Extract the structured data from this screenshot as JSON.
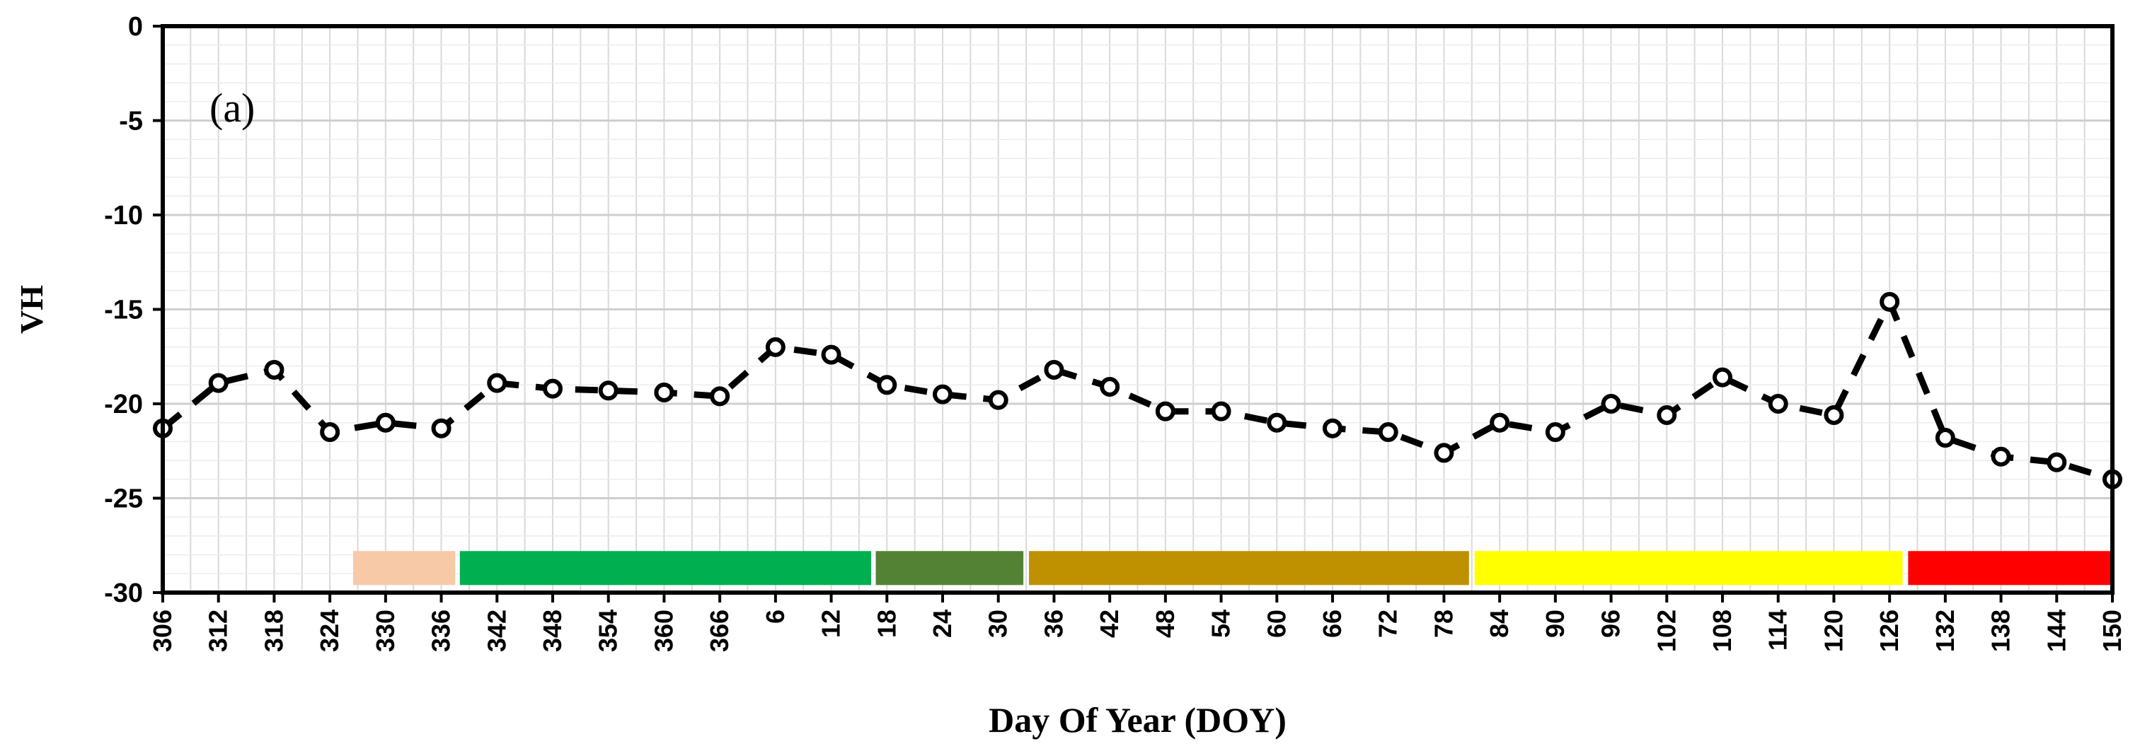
{
  "chart_data": {
    "type": "line",
    "panel_label": "(a)",
    "xlabel": "Day Of Year (DOY)",
    "ylabel": "VH",
    "ylim": [
      -30,
      0
    ],
    "yticks": [
      0,
      -5,
      -10,
      -15,
      -20,
      -25,
      -30
    ],
    "categories": [
      "306",
      "312",
      "318",
      "324",
      "330",
      "336",
      "342",
      "348",
      "354",
      "360",
      "366",
      "6",
      "12",
      "18",
      "24",
      "30",
      "36",
      "42",
      "48",
      "54",
      "60",
      "66",
      "72",
      "78",
      "84",
      "90",
      "96",
      "102",
      "108",
      "114",
      "120",
      "126",
      "132",
      "138",
      "144",
      "150"
    ],
    "series": [
      {
        "values": [
          -21.3,
          -18.9,
          -18.2,
          -21.5,
          -21.0,
          -21.3,
          -18.9,
          -19.2,
          -19.3,
          -19.4,
          -19.6,
          -17.0,
          -17.4,
          -19.0,
          -19.5,
          -19.8,
          -18.2,
          -19.1,
          -20.4,
          -20.4,
          -21.0,
          -21.3,
          -21.5,
          -22.6,
          -21.0,
          -21.5,
          -20.0,
          -20.6,
          -18.6,
          -20.0,
          -20.6,
          -14.6,
          -21.8,
          -22.8,
          -23.1,
          -24.0
        ],
        "color": "#000000",
        "line_style": "dashed",
        "marker": "open-circle"
      }
    ],
    "phase_bars": [
      {
        "start": 326.5,
        "end": 337.5,
        "color": "#F8C9A6"
      },
      {
        "start": 338.0,
        "end": 16.3,
        "color": "#00B050"
      },
      {
        "start": 16.8,
        "end": 32.7,
        "color": "#548235"
      },
      {
        "start": 33.3,
        "end": 80.7,
        "color": "#BF9000"
      },
      {
        "start": 81.3,
        "end": 127.4,
        "color": "#FFFF00"
      },
      {
        "start": 128.0,
        "end": 150.0,
        "color": "#FF0000"
      }
    ],
    "grid": true,
    "legend": "none"
  }
}
